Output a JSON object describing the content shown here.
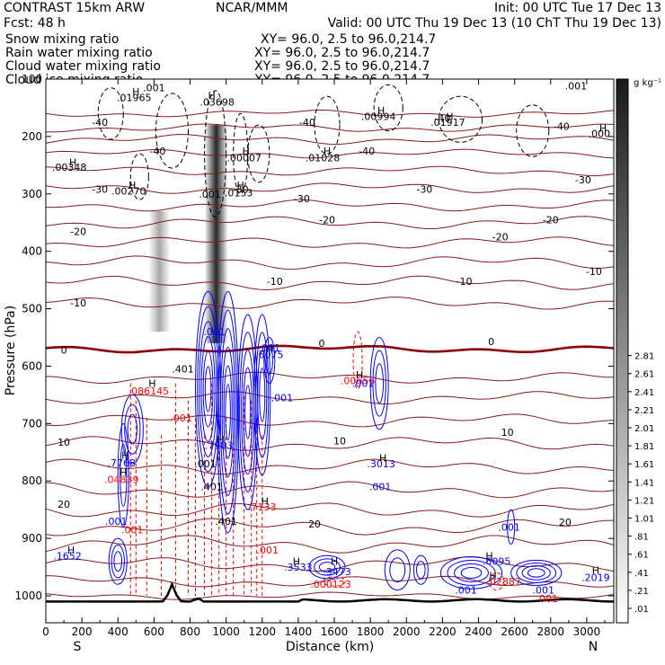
{
  "header": {
    "model": "CONTRAST 15km ARW",
    "forecast": "Fcst:   48 h",
    "center": "NCAR/MMM",
    "init": "Init: 00 UTC Tue 17 Dec 13",
    "valid": "Valid: 00 UTC Thu 19 Dec 13 (10 ChT Thu 19 Dec 13)",
    "fields": [
      {
        "name": "Snow mixing ratio",
        "xy": "XY=  96.0,  2.5 to  96.0,214.7",
        "color": "#000000"
      },
      {
        "name": "Rain water mixing ratio",
        "xy": "XY=  96.0,  2.5 to  96.0,214.7",
        "color": "#ff0000"
      },
      {
        "name": "Cloud water mixing ratio",
        "xy": "XY=  96.0,  2.5 to  96.0,214.7",
        "color": "#0000ff"
      },
      {
        "name": "Cloud ice mixing ratio",
        "xy": "XY=  96.0,  2.5 to  96.0,214.7",
        "color": "#000000"
      }
    ]
  },
  "chart_data": {
    "type": "contour",
    "xlabel": "Distance (km)",
    "ylabel": "Pressure (hPa)",
    "xlim": [
      0,
      3150
    ],
    "ylim": [
      1040,
      100
    ],
    "x_ticks": [
      0,
      200,
      400,
      600,
      800,
      1000,
      1200,
      1400,
      1600,
      1800,
      2000,
      2200,
      2400,
      2600,
      2800,
      3000
    ],
    "y_ticks": [
      100,
      200,
      300,
      400,
      500,
      600,
      700,
      800,
      900,
      1000
    ],
    "left_end_label": "S",
    "right_end_label": "N",
    "colorbar": {
      "unit": "g kg⁻¹",
      "labels": [
        ".01",
        ".21",
        ".41",
        ".61",
        ".81",
        "1.01",
        "1.21",
        "1.41",
        "1.61",
        "1.81",
        "2.01",
        "2.21",
        "2.41",
        "2.61",
        "2.81"
      ]
    },
    "temperature_labels": [
      {
        "x": 300,
        "p": 175,
        "text": "-40"
      },
      {
        "x": 1450,
        "p": 175,
        "text": "-40"
      },
      {
        "x": 2200,
        "p": 168,
        "text": "-40"
      },
      {
        "x": 2860,
        "p": 182,
        "text": "-40"
      },
      {
        "x": 620,
        "p": 225,
        "text": "-40"
      },
      {
        "x": 1780,
        "p": 225,
        "text": "-40"
      },
      {
        "x": 300,
        "p": 292,
        "text": "-30"
      },
      {
        "x": 1080,
        "p": 292,
        "text": "-30"
      },
      {
        "x": 2100,
        "p": 292,
        "text": "-30"
      },
      {
        "x": 2980,
        "p": 275,
        "text": "-30"
      },
      {
        "x": 1420,
        "p": 308,
        "text": "-30"
      },
      {
        "x": 180,
        "p": 365,
        "text": "-20"
      },
      {
        "x": 2520,
        "p": 375,
        "text": "-20"
      },
      {
        "x": 1560,
        "p": 345,
        "text": "-20"
      },
      {
        "x": 2800,
        "p": 345,
        "text": "-20"
      },
      {
        "x": 180,
        "p": 490,
        "text": "-10"
      },
      {
        "x": 2320,
        "p": 452,
        "text": "-10"
      },
      {
        "x": 3040,
        "p": 435,
        "text": "-10"
      },
      {
        "x": 1270,
        "p": 452,
        "text": "-10"
      },
      {
        "x": 100,
        "p": 572,
        "text": "0"
      },
      {
        "x": 1530,
        "p": 560,
        "text": "0"
      },
      {
        "x": 2470,
        "p": 557,
        "text": "0"
      },
      {
        "x": 100,
        "p": 732,
        "text": "10"
      },
      {
        "x": 1630,
        "p": 730,
        "text": "10"
      },
      {
        "x": 2560,
        "p": 715,
        "text": "10"
      },
      {
        "x": 100,
        "p": 840,
        "text": "20"
      },
      {
        "x": 1490,
        "p": 875,
        "text": "20"
      },
      {
        "x": 2880,
        "p": 872,
        "text": "20"
      }
    ],
    "max_labels": [
      {
        "x": 490,
        "p": 132,
        "text": ".01965",
        "color": "#000000"
      },
      {
        "x": 950,
        "p": 140,
        "text": ".03698",
        "color": "#000000"
      },
      {
        "x": 1845,
        "p": 165,
        "text": ".00994",
        "color": "#000000"
      },
      {
        "x": 2230,
        "p": 175,
        "text": ".01917",
        "color": "#000000"
      },
      {
        "x": 3070,
        "p": 195,
        "text": ".000",
        "color": "#000000"
      },
      {
        "x": 130,
        "p": 253,
        "text": ".00348",
        "color": "#000000"
      },
      {
        "x": 1100,
        "p": 237,
        "text": ".00007",
        "color": "#000000"
      },
      {
        "x": 1535,
        "p": 237,
        "text": ".01028",
        "color": "#000000"
      },
      {
        "x": 460,
        "p": 295,
        "text": ".00270",
        "color": "#000000"
      },
      {
        "x": 1070,
        "p": 298,
        "text": ".0153",
        "color": "#000000"
      },
      {
        "x": 1730,
        "p": 625,
        "text": ".00656",
        "color": "#ff0000"
      },
      {
        "x": 570,
        "p": 643,
        "text": ".086145",
        "color": "#ff0000"
      },
      {
        "x": 420,
        "p": 797,
        "text": ".04839",
        "color": "#ff0000"
      },
      {
        "x": 1200,
        "p": 845,
        "text": ".7133",
        "color": "#ff0000"
      },
      {
        "x": 1580,
        "p": 980,
        "text": ".000123",
        "color": "#ff0000"
      },
      {
        "x": 2540,
        "p": 975,
        "text": ".02887",
        "color": "#ff0000"
      },
      {
        "x": 1240,
        "p": 580,
        "text": ".6075",
        "color": "#0000ff"
      },
      {
        "x": 960,
        "p": 738,
        "text": ".7983",
        "color": "#0000ff"
      },
      {
        "x": 420,
        "p": 768,
        "text": ".7768",
        "color": "#0000ff"
      },
      {
        "x": 1860,
        "p": 770,
        "text": ".3013",
        "color": "#0000ff"
      },
      {
        "x": 120,
        "p": 930,
        "text": ".1652",
        "color": "#0000ff"
      },
      {
        "x": 1400,
        "p": 950,
        "text": ".3533",
        "color": "#0000ff"
      },
      {
        "x": 1615,
        "p": 958,
        "text": ".3473",
        "color": "#0000ff"
      },
      {
        "x": 2500,
        "p": 940,
        "text": ".6095",
        "color": "#0000ff"
      },
      {
        "x": 3050,
        "p": 968,
        "text": ".2019",
        "color": "#0000ff"
      }
    ],
    "note_labels": [
      {
        "x": 600,
        "p": 115,
        "text": ".001",
        "color": "#000000"
      },
      {
        "x": 2940,
        "p": 112,
        "text": ".001",
        "color": "#000000"
      },
      {
        "x": 910,
        "p": 300,
        "text": ".001",
        "color": "#000000"
      },
      {
        "x": 935,
        "p": 540,
        "text": ".001",
        "color": "#0000ff"
      },
      {
        "x": 1240,
        "p": 568,
        "text": ".001",
        "color": "#0000ff"
      },
      {
        "x": 1310,
        "p": 655,
        "text": ".001",
        "color": "#0000ff"
      },
      {
        "x": 1760,
        "p": 630,
        "text": ".001",
        "color": "#0000ff"
      },
      {
        "x": 760,
        "p": 605,
        "text": ".401",
        "color": "#000000"
      },
      {
        "x": 750,
        "p": 690,
        "text": ".001",
        "color": "#ff0000"
      },
      {
        "x": 885,
        "p": 770,
        "text": ".001",
        "color": "#000000"
      },
      {
        "x": 920,
        "p": 810,
        "text": ".401",
        "color": "#000000"
      },
      {
        "x": 1000,
        "p": 870,
        "text": ".401",
        "color": "#000000"
      },
      {
        "x": 1855,
        "p": 810,
        "text": ".001",
        "color": "#0000ff"
      },
      {
        "x": 390,
        "p": 870,
        "text": ".001",
        "color": "#0000ff"
      },
      {
        "x": 2570,
        "p": 880,
        "text": ".001",
        "color": "#0000ff"
      },
      {
        "x": 1230,
        "p": 920,
        "text": ".001",
        "color": "#ff0000"
      },
      {
        "x": 2330,
        "p": 990,
        "text": ".001",
        "color": "#0000ff"
      },
      {
        "x": 2760,
        "p": 990,
        "text": ".001",
        "color": "#0000ff"
      },
      {
        "x": 2780,
        "p": 1005,
        "text": ".001",
        "color": "#ff0000"
      },
      {
        "x": 480,
        "p": 885,
        "text": ".001",
        "color": "#ff0000"
      }
    ],
    "h_markers": [
      {
        "x": 150,
        "p": 245
      },
      {
        "x": 500,
        "p": 122
      },
      {
        "x": 920,
        "p": 128
      },
      {
        "x": 1110,
        "p": 225
      },
      {
        "x": 1560,
        "p": 225
      },
      {
        "x": 1860,
        "p": 155
      },
      {
        "x": 2240,
        "p": 165
      },
      {
        "x": 3090,
        "p": 185
      },
      {
        "x": 480,
        "p": 285
      },
      {
        "x": 1080,
        "p": 285
      },
      {
        "x": 590,
        "p": 630
      },
      {
        "x": 1740,
        "p": 615
      },
      {
        "x": 1240,
        "p": 570
      },
      {
        "x": 970,
        "p": 728
      },
      {
        "x": 440,
        "p": 755
      },
      {
        "x": 1870,
        "p": 760
      },
      {
        "x": 430,
        "p": 785
      },
      {
        "x": 1215,
        "p": 835
      },
      {
        "x": 1390,
        "p": 940
      },
      {
        "x": 1600,
        "p": 940
      },
      {
        "x": 2460,
        "p": 930
      },
      {
        "x": 2480,
        "p": 965
      },
      {
        "x": 3050,
        "p": 955
      },
      {
        "x": 140,
        "p": 920
      }
    ]
  }
}
